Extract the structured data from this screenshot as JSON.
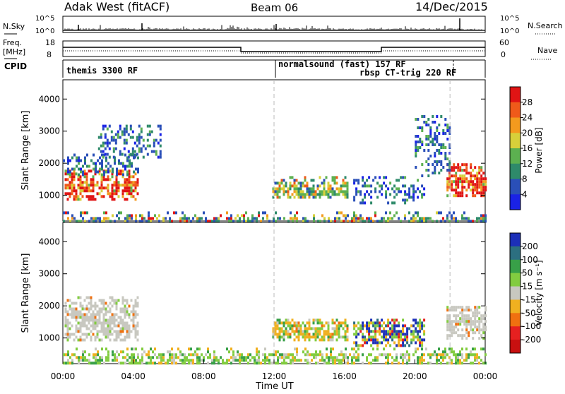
{
  "header": {
    "radar_title": "Adak West (fitACF)",
    "beam": "Beam 06",
    "date": "14/Dec/2015"
  },
  "strip_labels": {
    "nsky": "N.Sky",
    "nsearch": "N.Search",
    "freq_line1": "Freq.",
    "freq_line2": "[MHz]",
    "nave": "Nave",
    "cpid": "CPID",
    "nsky_top_tick": "10^5",
    "nsky_bottom_tick": "10^0",
    "freq_top_tick": "18",
    "freq_bottom_tick": "8",
    "nave_top_tick": "60",
    "nave_bottom_tick": "0"
  },
  "cpid_segments": [
    {
      "label": "themis 3300 RF",
      "start": 0,
      "end": 12
    },
    {
      "label": "normalsound (fast) 157 RF",
      "start": 12,
      "end": 22
    },
    {
      "label": "rbsp CT-trig 220 RF",
      "start": 22,
      "end": 24
    }
  ],
  "colors": {
    "scatter_gray": "#c8c8c0",
    "gridline": "#bbbbbb"
  },
  "chart_data": [
    {
      "type": "heatmap",
      "name": "power",
      "ylabel": "Slant Range [km]",
      "yticks": [
        "1000",
        "2000",
        "3000",
        "4000"
      ],
      "ylim": [
        200,
        4600
      ],
      "xlim": [
        0,
        24
      ],
      "colorbar_label": "Power [dB]",
      "colorbar_ticks": [
        "4",
        "8",
        "12",
        "16",
        "20",
        "24",
        "28"
      ],
      "colorbar_colors": [
        "#1a22e6",
        "#2a4fb8",
        "#2e8a6a",
        "#5cb050",
        "#d7d03a",
        "#f39a1e",
        "#ef5a1a",
        "#e01414"
      ],
      "regions": [
        {
          "x0": 0.1,
          "x1": 4.3,
          "r0": 900,
          "r1": 1800,
          "level": "high"
        },
        {
          "x0": 0.0,
          "x1": 4.3,
          "r0": 1600,
          "r1": 2300,
          "level": "low"
        },
        {
          "x0": 11.9,
          "x1": 16.2,
          "r0": 900,
          "r1": 1600,
          "level": "mid"
        },
        {
          "x0": 16.5,
          "x1": 20.5,
          "r0": 800,
          "r1": 1600,
          "level": "low"
        },
        {
          "x0": 21.8,
          "x1": 24.0,
          "r0": 1000,
          "r1": 2000,
          "level": "high"
        },
        {
          "x0": 20.0,
          "x1": 22.0,
          "r0": 1600,
          "r1": 3500,
          "level": "low"
        },
        {
          "x0": 2.0,
          "x1": 5.5,
          "r0": 2200,
          "r1": 3200,
          "level": "low"
        },
        {
          "x0": 0.0,
          "x1": 24.0,
          "r0": 200,
          "r1": 500,
          "level": "ground"
        }
      ]
    },
    {
      "type": "heatmap",
      "name": "velocity",
      "ylabel": "Slant Range [km]",
      "yticks": [
        "1000",
        "2000",
        "3000",
        "4000"
      ],
      "ylim": [
        200,
        4600
      ],
      "xlim": [
        0,
        24
      ],
      "colorbar_label": "Velocity [m s⁻¹]",
      "colorbar_ticks": [
        "200",
        "100",
        "50",
        "15",
        "-15",
        "-50",
        "-100",
        "-200"
      ],
      "colorbar_colors": [
        "#1c2fb8",
        "#2c6f80",
        "#38a048",
        "#82cc40",
        "#c8c8c0",
        "#f0b020",
        "#f07010",
        "#e62020",
        "#c81010"
      ],
      "regions": [
        {
          "x0": 0.1,
          "x1": 4.3,
          "r0": 900,
          "r1": 2300,
          "level": "gray"
        },
        {
          "x0": 11.9,
          "x1": 16.2,
          "r0": 900,
          "r1": 1600,
          "level": "orange"
        },
        {
          "x0": 16.5,
          "x1": 20.5,
          "r0": 800,
          "r1": 1600,
          "level": "mixed"
        },
        {
          "x0": 21.8,
          "x1": 24.0,
          "r0": 1000,
          "r1": 2000,
          "level": "gray"
        },
        {
          "x0": 0.0,
          "x1": 24.0,
          "r0": 200,
          "r1": 700,
          "level": "ground"
        }
      ]
    }
  ],
  "xaxis": {
    "ticks": [
      "00:00",
      "04:00",
      "08:00",
      "12:00",
      "16:00",
      "20:00",
      "00:00"
    ],
    "label": "Time UT"
  },
  "time_markers": [
    12,
    22
  ]
}
